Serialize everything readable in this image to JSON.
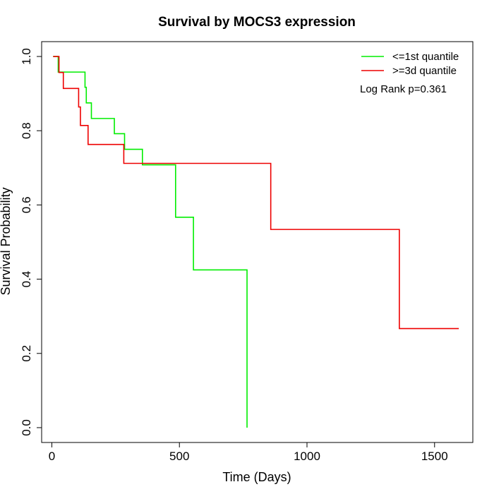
{
  "chart_data": {
    "type": "line",
    "title": "Survival by MOCS3 expression",
    "xlabel": "Time (Days)",
    "ylabel": "Survival Probability",
    "xlim": [
      -40,
      1650
    ],
    "ylim": [
      -0.04,
      1.04
    ],
    "x_ticks": [
      0,
      500,
      1000,
      1500
    ],
    "y_ticks": [
      0.0,
      0.2,
      0.4,
      0.6,
      0.8,
      1.0
    ],
    "x_tick_labels": [
      "0",
      "500",
      "1000",
      "1500"
    ],
    "y_tick_labels": [
      "0.0",
      "0.2",
      "0.4",
      "0.6",
      "0.8",
      "1.0"
    ],
    "grid": false,
    "legend_position": "top-right",
    "annotation": "Log Rank p=0.361",
    "series": [
      {
        "name": "<=1st quantile",
        "color": "#00ee00",
        "steps": [
          [
            5,
            1.0
          ],
          [
            25,
            0.958
          ],
          [
            130,
            0.917
          ],
          [
            135,
            0.875
          ],
          [
            155,
            0.833
          ],
          [
            245,
            0.792
          ],
          [
            285,
            0.75
          ],
          [
            355,
            0.708
          ],
          [
            485,
            0.567
          ],
          [
            555,
            0.425
          ],
          [
            765,
            0.0
          ]
        ]
      },
      {
        "name": ">=3d quantile",
        "color": "#ee0000",
        "steps": [
          [
            5,
            1.0
          ],
          [
            28,
            0.957
          ],
          [
            45,
            0.914
          ],
          [
            105,
            0.864
          ],
          [
            112,
            0.814
          ],
          [
            142,
            0.763
          ],
          [
            282,
            0.712
          ],
          [
            858,
            0.534
          ],
          [
            1362,
            0.267
          ],
          [
            1595,
            0.267
          ]
        ]
      }
    ]
  }
}
